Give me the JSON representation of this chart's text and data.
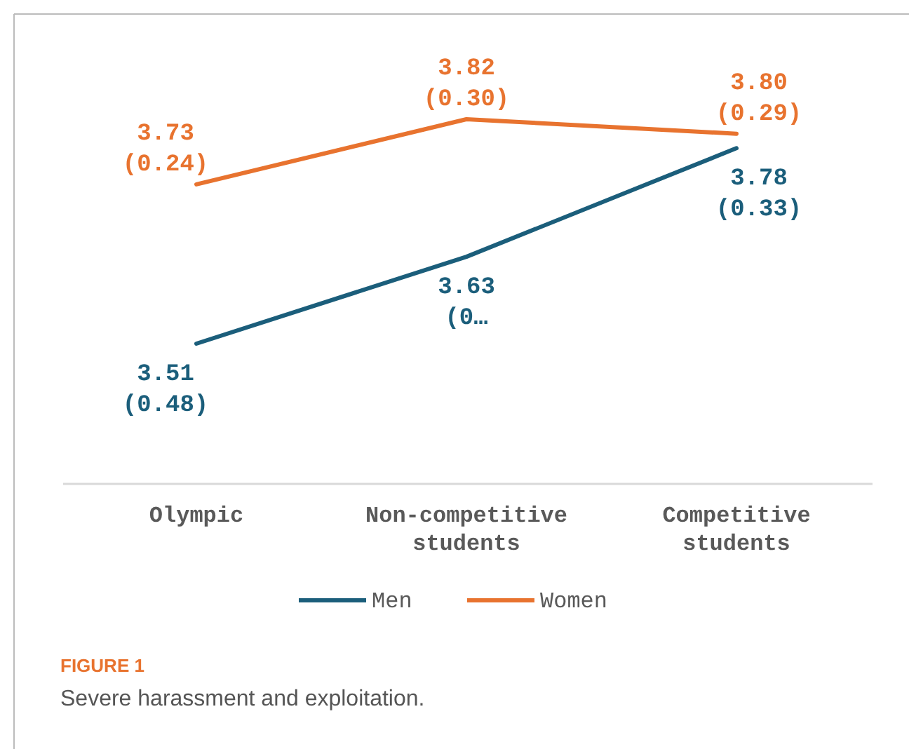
{
  "chart_data": {
    "type": "line",
    "title": "FIGURE 1",
    "subtitle": "Severe harassment and exploitation.",
    "categories": [
      "Olympic",
      "Non-competitive\nstudents",
      "Competitive\nstudents"
    ],
    "series": [
      {
        "name": "Men",
        "color": "#1b5e7b",
        "values": [
          3.51,
          3.63,
          3.78
        ],
        "value_labels": [
          "3.51\n(0.48)",
          "3.63\n(0…",
          "3.78\n(0.33)"
        ]
      },
      {
        "name": "Women",
        "color": "#e8732f",
        "values": [
          3.73,
          3.82,
          3.8
        ],
        "value_labels": [
          "3.73\n(0.24)",
          "3.82\n(0.30)",
          "3.80\n(0.29)"
        ]
      }
    ],
    "legend": "bottom",
    "line_style": "solid"
  }
}
